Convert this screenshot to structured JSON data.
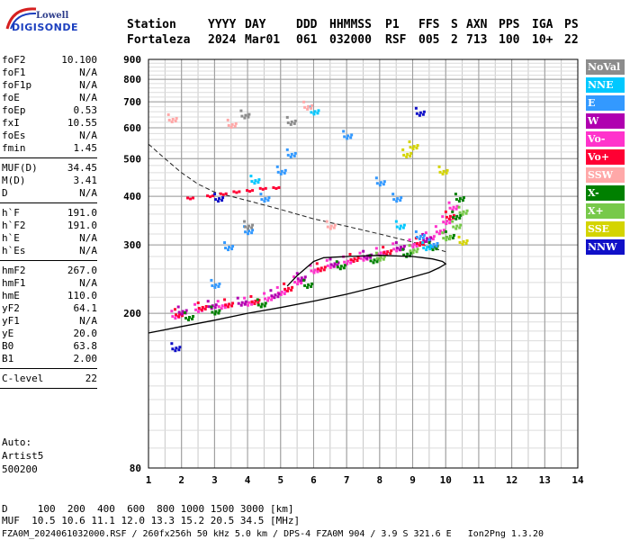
{
  "logo": {
    "line1": "Lowell",
    "line2": "DIGISONDE"
  },
  "header": {
    "row1": [
      "Station",
      "YYYY",
      "DAY",
      "DDD",
      "HHMMSS",
      "P1",
      "FFS",
      "S",
      "AXN",
      "PPS",
      "IGA",
      "PS"
    ],
    "row2": [
      "Fortaleza",
      "2024",
      "Mar01",
      "061",
      "032000",
      "RSF",
      "005",
      "2",
      "713",
      "100",
      "10+",
      "22"
    ]
  },
  "params": {
    "group1": [
      {
        "k": "foF2",
        "v": "10.100"
      },
      {
        "k": "foF1",
        "v": "N/A"
      },
      {
        "k": "foF1p",
        "v": "N/A"
      },
      {
        "k": "foE",
        "v": "N/A"
      },
      {
        "k": "foEp",
        "v": "0.53"
      },
      {
        "k": "fxI",
        "v": "10.55"
      },
      {
        "k": "foEs",
        "v": "N/A"
      },
      {
        "k": "fmin",
        "v": "1.45"
      }
    ],
    "group2": [
      {
        "k": "MUF(D)",
        "v": "34.45"
      },
      {
        "k": "M(D)",
        "v": "3.41"
      },
      {
        "k": "D",
        "v": "N/A"
      }
    ],
    "group3": [
      {
        "k": "h`F",
        "v": "191.0"
      },
      {
        "k": "h`F2",
        "v": "191.0"
      },
      {
        "k": "h`E",
        "v": "N/A"
      },
      {
        "k": "h`Es",
        "v": "N/A"
      }
    ],
    "group4": [
      {
        "k": "hmF2",
        "v": "267.0"
      },
      {
        "k": "hmF1",
        "v": "N/A"
      },
      {
        "k": "hmE",
        "v": "110.0"
      },
      {
        "k": "yF2",
        "v": "64.1"
      },
      {
        "k": "yF1",
        "v": "N/A"
      },
      {
        "k": "yE",
        "v": "20.0"
      },
      {
        "k": "B0",
        "v": "63.8"
      },
      {
        "k": "B1",
        "v": "2.00"
      }
    ],
    "group5": [
      {
        "k": "C-level",
        "v": "22"
      }
    ]
  },
  "auto": {
    "line1": "Auto:",
    "line2": "Artist5",
    "line3": "500200"
  },
  "legend": [
    {
      "label": "NoVal",
      "color": "#8c8c8c"
    },
    {
      "label": "NNE",
      "color": "#00c8ff"
    },
    {
      "label": "E",
      "color": "#3399ff"
    },
    {
      "label": "W",
      "color": "#b000b0"
    },
    {
      "label": "Vo-",
      "color": "#ff33cc"
    },
    {
      "label": "Vo+",
      "color": "#ff0033"
    },
    {
      "label": "SSW",
      "color": "#ffa8a8"
    },
    {
      "label": "X-",
      "color": "#008000"
    },
    {
      "label": "X+",
      "color": "#77c94a"
    },
    {
      "label": "SSE",
      "color": "#d4d400"
    },
    {
      "label": "NNW",
      "color": "#1010c8"
    }
  ],
  "footer": {
    "line1": "D     100  200  400  600  800 1000 1500 3000 [km]",
    "line2": "MUF  10.5 10.6 11.1 12.0 13.3 15.2 20.5 34.5 [MHz]",
    "line3": "FZA0M_2024061032000.RSF / 260fx256h 50 kHz 5.0 km / DPS-4 FZA0M 904 / 3.9 S 321.6 E   Ion2Png 1.3.20"
  },
  "chart_data": {
    "type": "scatter",
    "xlim": [
      1,
      14
    ],
    "ylim": [
      80,
      900
    ],
    "y_scale": "log",
    "x_ticks": [
      1,
      2,
      3,
      4,
      5,
      6,
      7,
      8,
      9,
      10,
      11,
      12,
      13,
      14
    ],
    "y_ticks": [
      80,
      200,
      300,
      400,
      500,
      600,
      700,
      800,
      900
    ],
    "grid": true,
    "traces": [
      {
        "name": "Vo-",
        "color": "#ff33cc",
        "points": [
          [
            1.8,
            200
          ],
          [
            2.5,
            208
          ],
          [
            3.2,
            212
          ],
          [
            4.0,
            216
          ],
          [
            4.6,
            222
          ],
          [
            5.0,
            230
          ],
          [
            5.5,
            245
          ],
          [
            6.0,
            262
          ],
          [
            6.5,
            270
          ],
          [
            7.0,
            276
          ],
          [
            7.5,
            282
          ],
          [
            8.0,
            290
          ],
          [
            8.5,
            298
          ],
          [
            9.0,
            305
          ],
          [
            9.5,
            318
          ],
          [
            9.8,
            330
          ],
          [
            10.0,
            350
          ],
          [
            10.2,
            380
          ]
        ]
      },
      {
        "name": "Vo+",
        "color": "#ff0033",
        "points": [
          [
            1.9,
            202
          ],
          [
            2.6,
            210
          ],
          [
            3.4,
            214
          ],
          [
            4.2,
            218
          ],
          [
            5.2,
            235
          ],
          [
            6.2,
            265
          ],
          [
            7.2,
            280
          ],
          [
            8.2,
            292
          ],
          [
            9.2,
            308
          ],
          [
            10.1,
            360
          ]
        ]
      },
      {
        "name": "W",
        "color": "#b000b0",
        "points": [
          [
            2.0,
            205
          ],
          [
            2.9,
            212
          ],
          [
            3.8,
            216
          ],
          [
            4.8,
            226
          ],
          [
            5.6,
            250
          ],
          [
            6.6,
            272
          ],
          [
            7.6,
            285
          ],
          [
            8.6,
            300
          ],
          [
            9.4,
            315
          ]
        ]
      },
      {
        "name": "X-",
        "color": "#008000",
        "points": [
          [
            2.2,
            198
          ],
          [
            3.0,
            205
          ],
          [
            4.4,
            214
          ],
          [
            5.8,
            240
          ],
          [
            6.8,
            268
          ],
          [
            7.8,
            278
          ],
          [
            8.8,
            288
          ],
          [
            9.6,
            300
          ],
          [
            10.1,
            320
          ],
          [
            10.3,
            360
          ],
          [
            10.4,
            400
          ]
        ]
      },
      {
        "name": "X+",
        "color": "#77c94a",
        "points": [
          [
            8.0,
            282
          ],
          [
            9.0,
            295
          ],
          [
            10.0,
            318
          ],
          [
            10.3,
            340
          ],
          [
            10.5,
            370
          ]
        ]
      },
      {
        "name": "E",
        "color": "#3399ff",
        "points": [
          [
            3.0,
            240
          ],
          [
            3.4,
            300
          ],
          [
            4.0,
            330
          ],
          [
            4.5,
            400
          ],
          [
            5.0,
            470
          ],
          [
            5.3,
            520
          ],
          [
            7.0,
            580
          ],
          [
            8.0,
            440
          ],
          [
            8.5,
            400
          ],
          [
            9.2,
            320
          ],
          [
            9.6,
            305
          ]
        ]
      },
      {
        "name": "NNE",
        "color": "#00c8ff",
        "points": [
          [
            4.2,
            445
          ],
          [
            6.0,
            670
          ],
          [
            8.6,
            340
          ],
          [
            9.4,
            300
          ]
        ]
      },
      {
        "name": "SSW",
        "color": "#ffa8a8",
        "points": [
          [
            1.7,
            640
          ],
          [
            3.5,
            620
          ],
          [
            5.8,
            690
          ],
          [
            6.5,
            340
          ]
        ]
      },
      {
        "name": "SSE",
        "color": "#d4d400",
        "points": [
          [
            8.8,
            520
          ],
          [
            9.0,
            545
          ],
          [
            10.5,
            310
          ],
          [
            9.9,
            470
          ]
        ]
      },
      {
        "name": "NNW",
        "color": "#1010c8",
        "points": [
          [
            1.8,
            165
          ],
          [
            9.2,
            665
          ],
          [
            3.1,
            400
          ]
        ]
      },
      {
        "name": "NoVal",
        "color": "#8c8c8c",
        "points": [
          [
            3.9,
            655
          ],
          [
            5.3,
            630
          ],
          [
            4.0,
            340
          ]
        ]
      }
    ],
    "second_hop": {
      "color": "#ff0033",
      "points": [
        [
          2.2,
          395
        ],
        [
          2.8,
          400
        ],
        [
          3.2,
          405
        ],
        [
          3.6,
          410
        ],
        [
          4.0,
          413
        ],
        [
          4.4,
          418
        ],
        [
          4.8,
          420
        ]
      ]
    },
    "profile_solid": [
      [
        1,
        178
      ],
      [
        2,
        185
      ],
      [
        3,
        192
      ],
      [
        4,
        200
      ],
      [
        5,
        207
      ],
      [
        6,
        215
      ],
      [
        7,
        224
      ],
      [
        8,
        235
      ],
      [
        9,
        248
      ],
      [
        9.5,
        255
      ],
      [
        9.8,
        262
      ],
      [
        10.0,
        268
      ],
      [
        9.9,
        272
      ],
      [
        9.6,
        276
      ],
      [
        9.0,
        280
      ],
      [
        8.0,
        282
      ],
      [
        7.0,
        280
      ],
      [
        6.3,
        278
      ],
      [
        6.0,
        272
      ],
      [
        5.5,
        250
      ],
      [
        5.2,
        235
      ]
    ],
    "profile_dashed": [
      [
        1,
        545
      ],
      [
        1.5,
        500
      ],
      [
        2,
        460
      ],
      [
        2.5,
        430
      ],
      [
        3,
        410
      ],
      [
        4,
        390
      ],
      [
        5,
        370
      ],
      [
        6,
        350
      ],
      [
        7,
        335
      ],
      [
        8,
        320
      ],
      [
        9,
        305
      ],
      [
        9.6,
        295
      ],
      [
        10,
        288
      ]
    ]
  }
}
